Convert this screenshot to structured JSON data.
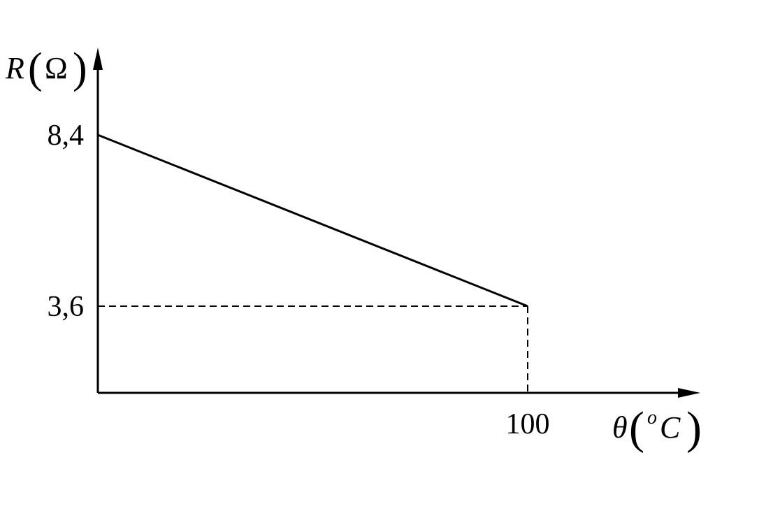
{
  "chart_data": {
    "type": "line",
    "title": "",
    "xlabel": {
      "symbol": "θ",
      "unit_degree": "o",
      "unit": "C"
    },
    "ylabel": {
      "symbol": "R",
      "unit": "Ω"
    },
    "x_ticks": [
      {
        "value": 100,
        "label": "100"
      }
    ],
    "y_ticks": [
      {
        "value": 8.4,
        "label": "8,4"
      },
      {
        "value": 3.6,
        "label": "3,6"
      }
    ],
    "series": [
      {
        "points": [
          {
            "x": 0,
            "y": 8.4
          },
          {
            "x": 100,
            "y": 3.6
          }
        ],
        "color": "#000000",
        "style": "solid"
      }
    ],
    "guides": [
      {
        "from": {
          "x": 0,
          "y": 3.6
        },
        "to": {
          "x": 100,
          "y": 3.6
        },
        "style": "dashed"
      },
      {
        "from": {
          "x": 100,
          "y": 3.6
        },
        "to": {
          "x": 100,
          "y": "axis"
        },
        "style": "dashed"
      }
    ],
    "grid": false,
    "legend": "none"
  }
}
